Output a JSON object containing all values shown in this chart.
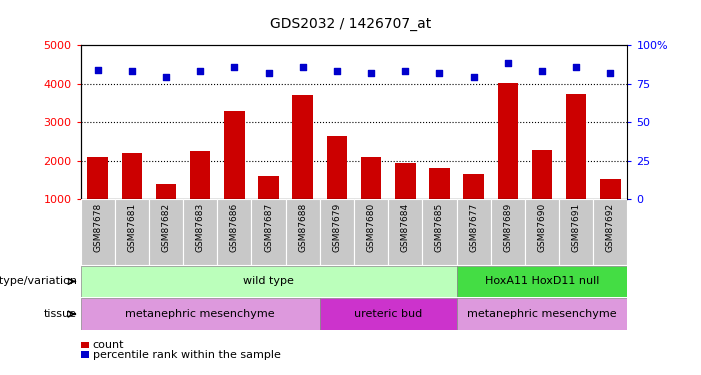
{
  "title": "GDS2032 / 1426707_at",
  "samples": [
    "GSM87678",
    "GSM87681",
    "GSM87682",
    "GSM87683",
    "GSM87686",
    "GSM87687",
    "GSM87688",
    "GSM87679",
    "GSM87680",
    "GSM87684",
    "GSM87685",
    "GSM87677",
    "GSM87689",
    "GSM87690",
    "GSM87691",
    "GSM87692"
  ],
  "counts": [
    2100,
    2200,
    1380,
    2250,
    3280,
    1600,
    3700,
    2650,
    2100,
    1950,
    1810,
    1650,
    4020,
    2280,
    3720,
    1520
  ],
  "percentile_ranks": [
    84,
    83,
    79,
    83,
    86,
    82,
    86,
    83,
    82,
    83,
    82,
    79,
    88,
    83,
    86,
    82
  ],
  "ylim_left": [
    1000,
    5000
  ],
  "ylim_right": [
    0,
    100
  ],
  "yticks_left": [
    1000,
    2000,
    3000,
    4000,
    5000
  ],
  "yticks_right": [
    0,
    25,
    50,
    75,
    100
  ],
  "bar_color": "#cc0000",
  "dot_color": "#0000cc",
  "genotype_regions": [
    {
      "label": "wild type",
      "start": 0,
      "end": 11,
      "color": "#bbffbb"
    },
    {
      "label": "HoxA11 HoxD11 null",
      "start": 11,
      "end": 16,
      "color": "#44dd44"
    }
  ],
  "tissue_regions": [
    {
      "label": "metanephric mesenchyme",
      "start": 0,
      "end": 7,
      "color": "#dd99dd"
    },
    {
      "label": "ureteric bud",
      "start": 7,
      "end": 11,
      "color": "#cc33cc"
    },
    {
      "label": "metanephric mesenchyme",
      "start": 11,
      "end": 16,
      "color": "#dd99dd"
    }
  ],
  "legend_count_label": "count",
  "legend_pct_label": "percentile rank within the sample",
  "genotype_label": "genotype/variation",
  "tissue_label": "tissue"
}
